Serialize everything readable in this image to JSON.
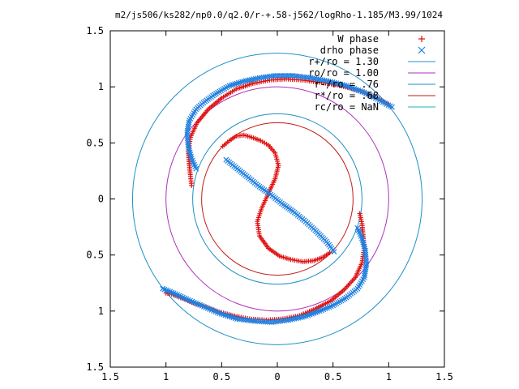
{
  "chart_data": {
    "type": "scatter",
    "title": "m2/js506/ks282/np0.0/q2.0/r-+.58-j562/logRho-1.185/M3.99/1024",
    "xlim": [
      -1.5,
      1.5
    ],
    "ylim": [
      -1.5,
      1.5
    ],
    "x_ticks": [
      -1.5,
      -1,
      -0.5,
      0,
      0.5,
      1,
      1.5
    ],
    "x_tick_labels": [
      "1.5",
      "1",
      "0.5",
      "0",
      "0.5",
      "1",
      "1.5"
    ],
    "y_ticks": [
      1.5,
      1,
      0.5,
      0,
      -0.5,
      -1,
      -1.5
    ],
    "y_tick_labels": [
      "1.5",
      "1",
      "0.5",
      "0",
      "0.5",
      "1",
      "1.5"
    ],
    "grid": false,
    "legend_position": "top-right",
    "circles": [
      {
        "name": "r+/ro = 1.30",
        "radius": 1.3,
        "color": "#1e90c8"
      },
      {
        "name": "ro/ro = 1.00",
        "radius": 1.0,
        "color": "#b030c0"
      },
      {
        "name": "r-/ro = .76",
        "radius": 0.76,
        "color": "#1e90c8"
      },
      {
        "name": "r*/ro = .68",
        "radius": 0.68,
        "color": "#c01818"
      },
      {
        "name": "rc/ro = NaN",
        "radius": null,
        "color": "#20b0b0"
      }
    ],
    "series": [
      {
        "name": "W phase",
        "marker": "+",
        "color": "#e01010",
        "curves": [
          [
            [
              -0.49,
              0.47
            ],
            [
              -0.43,
              0.52
            ],
            [
              -0.37,
              0.56
            ],
            [
              -0.3,
              0.57
            ],
            [
              -0.23,
              0.55
            ],
            [
              -0.15,
              0.52
            ],
            [
              -0.08,
              0.48
            ],
            [
              -0.02,
              0.41
            ],
            [
              0.01,
              0.3
            ],
            [
              -0.02,
              0.18
            ],
            [
              -0.08,
              0.05
            ],
            [
              -0.14,
              -0.08
            ],
            [
              -0.18,
              -0.2
            ],
            [
              -0.16,
              -0.33
            ],
            [
              -0.08,
              -0.44
            ],
            [
              0.02,
              -0.51
            ],
            [
              0.12,
              -0.54
            ],
            [
              0.23,
              -0.56
            ],
            [
              0.33,
              -0.55
            ],
            [
              0.41,
              -0.52
            ],
            [
              0.47,
              -0.48
            ]
          ],
          [
            [
              -0.77,
              0.12
            ],
            [
              -0.78,
              0.2
            ],
            [
              -0.79,
              0.3
            ],
            [
              -0.8,
              0.42
            ],
            [
              -0.78,
              0.55
            ],
            [
              -0.72,
              0.68
            ],
            [
              -0.62,
              0.8
            ],
            [
              -0.5,
              0.9
            ],
            [
              -0.37,
              0.98
            ],
            [
              -0.22,
              1.03
            ],
            [
              -0.07,
              1.06
            ],
            [
              0.08,
              1.07
            ],
            [
              0.23,
              1.06
            ],
            [
              0.38,
              1.04
            ],
            [
              0.52,
              1.02
            ],
            [
              0.65,
              0.99
            ],
            [
              0.78,
              0.95
            ],
            [
              0.9,
              0.9
            ],
            [
              1.0,
              0.84
            ]
          ],
          [
            [
              0.74,
              -0.13
            ],
            [
              0.76,
              -0.22
            ],
            [
              0.77,
              -0.32
            ],
            [
              0.78,
              -0.44
            ],
            [
              0.76,
              -0.57
            ],
            [
              0.7,
              -0.7
            ],
            [
              0.6,
              -0.81
            ],
            [
              0.48,
              -0.91
            ],
            [
              0.34,
              -0.98
            ],
            [
              0.2,
              -1.04
            ],
            [
              0.05,
              -1.07
            ],
            [
              -0.1,
              -1.08
            ],
            [
              -0.25,
              -1.07
            ],
            [
              -0.4,
              -1.04
            ],
            [
              -0.55,
              -1.0
            ],
            [
              -0.69,
              -0.95
            ],
            [
              -0.82,
              -0.9
            ],
            [
              -0.95,
              -0.85
            ],
            [
              -1.0,
              -0.84
            ]
          ]
        ]
      },
      {
        "name": "drho phase",
        "marker": "x",
        "color": "#2080e0",
        "curves": [
          [
            [
              -0.46,
              0.35
            ],
            [
              -0.36,
              0.27
            ],
            [
              -0.26,
              0.19
            ],
            [
              -0.16,
              0.11
            ],
            [
              -0.06,
              0.04
            ],
            [
              0.04,
              -0.04
            ],
            [
              0.14,
              -0.11
            ],
            [
              0.24,
              -0.19
            ],
            [
              0.34,
              -0.28
            ],
            [
              0.44,
              -0.38
            ],
            [
              0.51,
              -0.47
            ]
          ],
          [
            [
              -0.73,
              0.27
            ],
            [
              -0.77,
              0.36
            ],
            [
              -0.8,
              0.47
            ],
            [
              -0.81,
              0.59
            ],
            [
              -0.79,
              0.7
            ],
            [
              -0.73,
              0.8
            ],
            [
              -0.65,
              0.87
            ],
            [
              -0.55,
              0.94
            ],
            [
              -0.43,
              1.01
            ],
            [
              -0.3,
              1.05
            ],
            [
              -0.16,
              1.08
            ],
            [
              -0.02,
              1.1
            ],
            [
              0.14,
              1.1
            ],
            [
              0.3,
              1.08
            ],
            [
              0.46,
              1.05
            ],
            [
              0.62,
              1.01
            ],
            [
              0.78,
              0.95
            ],
            [
              0.9,
              0.89
            ],
            [
              1.03,
              0.82
            ]
          ],
          [
            [
              0.72,
              -0.26
            ],
            [
              0.76,
              -0.35
            ],
            [
              0.79,
              -0.46
            ],
            [
              0.8,
              -0.58
            ],
            [
              0.78,
              -0.7
            ],
            [
              0.72,
              -0.8
            ],
            [
              0.62,
              -0.88
            ],
            [
              0.5,
              -0.95
            ],
            [
              0.38,
              -1.0
            ],
            [
              0.24,
              -1.05
            ],
            [
              0.1,
              -1.08
            ],
            [
              -0.05,
              -1.1
            ],
            [
              -0.2,
              -1.09
            ],
            [
              -0.36,
              -1.07
            ],
            [
              -0.52,
              -1.02
            ],
            [
              -0.66,
              -0.96
            ],
            [
              -0.8,
              -0.9
            ],
            [
              -0.93,
              -0.84
            ],
            [
              -1.03,
              -0.8
            ]
          ]
        ]
      }
    ]
  }
}
